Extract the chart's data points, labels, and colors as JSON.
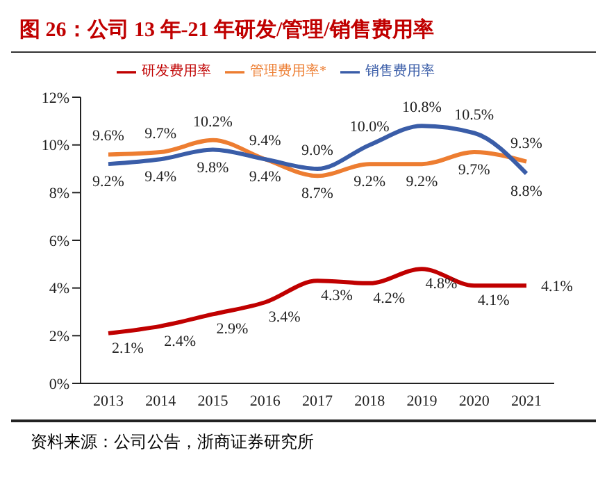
{
  "chart_data": {
    "type": "line",
    "title": "图 26：公司 13 年-21 年研发/管理/销售费用率",
    "categories": [
      "2013",
      "2014",
      "2015",
      "2016",
      "2017",
      "2018",
      "2019",
      "2020",
      "2021"
    ],
    "series": [
      {
        "name": "研发费用率",
        "color": "#c00000",
        "values": [
          2.1,
          2.4,
          2.9,
          3.4,
          4.3,
          4.2,
          4.8,
          4.1,
          4.1
        ],
        "value_labels": [
          "2.1%",
          "2.4%",
          "2.9%",
          "3.4%",
          "4.3%",
          "4.2%",
          "4.8%",
          "4.1%",
          "4.1%"
        ]
      },
      {
        "name": "管理费用率*",
        "color": "#ed7d31",
        "values": [
          9.6,
          9.7,
          10.2,
          9.4,
          8.7,
          9.2,
          9.2,
          9.7,
          9.3
        ],
        "value_labels": [
          "9.6%",
          "9.7%",
          "10.2%",
          "9.4%",
          "8.7%",
          "9.2%",
          "9.2%",
          "9.7%",
          "9.3%"
        ]
      },
      {
        "name": "销售费用率",
        "color": "#3a5da8",
        "values": [
          9.2,
          9.4,
          9.8,
          9.4,
          9.0,
          10.0,
          10.8,
          10.5,
          8.8
        ],
        "value_labels": [
          "9.2%",
          "9.4%",
          "9.8%",
          "9.4%",
          "9.0%",
          "10.0%",
          "10.8%",
          "10.5%",
          "8.8%"
        ]
      }
    ],
    "ylim": [
      0,
      12
    ],
    "yticks": [
      {
        "value": 0,
        "label": "0%"
      },
      {
        "value": 2,
        "label": "2%"
      },
      {
        "value": 4,
        "label": "4%"
      },
      {
        "value": 6,
        "label": "6%"
      },
      {
        "value": 8,
        "label": "8%"
      },
      {
        "value": 10,
        "label": "10%"
      },
      {
        "value": 12,
        "label": "12%"
      }
    ],
    "grid": false,
    "legend": "top",
    "marker": "none",
    "line_style": "solid",
    "annotations": [
      "资料来源：公司公告，浙商证券研究所"
    ]
  }
}
